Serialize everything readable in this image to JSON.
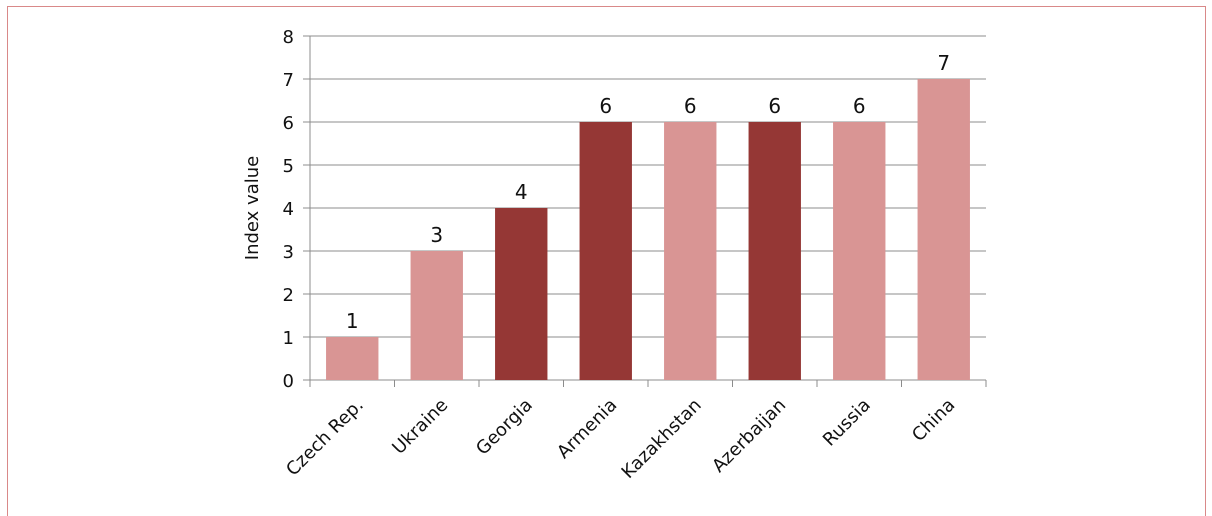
{
  "chart_data": {
    "type": "bar",
    "categories": [
      "Czech Rep.",
      "Ukraine",
      "Georgia",
      "Armenia",
      "Kazakhstan",
      "Azerbaijan",
      "Russia",
      "China"
    ],
    "values": [
      1,
      3,
      4,
      6,
      6,
      6,
      6,
      7
    ],
    "data_labels": [
      "1",
      "3",
      "4",
      "6",
      "6",
      "6",
      "6",
      "7"
    ],
    "bar_colors": [
      "#d99594",
      "#d99594",
      "#953735",
      "#953735",
      "#d99594",
      "#953735",
      "#d99594",
      "#d99594"
    ],
    "title": "",
    "xlabel": "",
    "ylabel": "Index value",
    "ylim": [
      0,
      8
    ],
    "yticks": [
      "0",
      "1",
      "2",
      "3",
      "4",
      "5",
      "6",
      "7",
      "8"
    ],
    "grid": true,
    "legend": "none"
  },
  "colors": {
    "frame_border": "#d98989",
    "gridline": "#8c8c8c",
    "light_bar": "#d99594",
    "dark_bar": "#953735"
  }
}
